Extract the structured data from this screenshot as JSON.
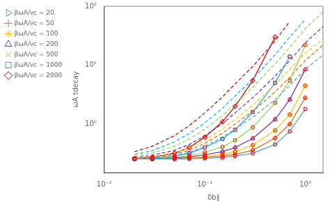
{
  "chart_data": {
    "type": "line",
    "log": true,
    "grid": false,
    "legend": "upper left",
    "x_label": "δb∥",
    "y_label": "ωA tdecay",
    "xlim": [
      0.01,
      1.5
    ],
    "ylim": [
      0.15,
      100
    ],
    "xticks": [
      {
        "value": 0.01,
        "label": "10⁻²"
      },
      {
        "value": 0.1,
        "label": "10⁻¹"
      },
      {
        "value": 1,
        "label": "10⁰"
      }
    ],
    "yticks": [
      {
        "value": 1,
        "label": "10⁰"
      },
      {
        "value": 10,
        "label": "10¹"
      },
      {
        "value": 100,
        "label": "10²"
      }
    ],
    "series": [
      {
        "name": "βωA/νc = 20",
        "color": "#5B9BD5",
        "type": "line",
        "marker": "triangle-right-open",
        "line_style": "solid",
        "x": [
          0.02,
          0.03,
          0.05,
          0.07,
          0.1,
          0.15,
          0.2,
          0.3,
          0.5,
          0.7,
          1.0
        ],
        "values": [
          0.255,
          0.255,
          0.255,
          0.258,
          0.262,
          0.27,
          0.285,
          0.32,
          0.45,
          0.75,
          1.8
        ]
      },
      {
        "color": "#5B9BD5",
        "type": "line",
        "line_style": "dashed",
        "x": [
          0.02,
          0.03,
          0.05,
          0.07,
          0.1,
          0.15,
          0.2,
          0.3,
          0.5,
          0.7,
          1.0,
          1.5
        ],
        "values": [
          0.255,
          0.265,
          0.29,
          0.33,
          0.42,
          0.6,
          0.82,
          1.3,
          2.6,
          4.5,
          8.5,
          15.0
        ]
      },
      {
        "name": "βωA/νc = 50",
        "color": "#E36C09",
        "type": "line",
        "marker": "plus",
        "line_style": "solid",
        "x": [
          0.02,
          0.03,
          0.05,
          0.07,
          0.1,
          0.15,
          0.2,
          0.3,
          0.5,
          0.7,
          1.0
        ],
        "values": [
          0.255,
          0.255,
          0.258,
          0.262,
          0.27,
          0.285,
          0.305,
          0.36,
          0.58,
          1.0,
          2.8
        ]
      },
      {
        "color": "#E36C09",
        "type": "line",
        "line_style": "dashed",
        "x": [
          0.02,
          0.03,
          0.05,
          0.07,
          0.1,
          0.15,
          0.2,
          0.3,
          0.5,
          0.7,
          1.0,
          1.5
        ],
        "values": [
          0.258,
          0.27,
          0.305,
          0.36,
          0.47,
          0.7,
          1.0,
          1.65,
          3.5,
          6.2,
          12.0,
          22.0
        ]
      },
      {
        "name": "βωA/νc = 100",
        "color": "#FFC000",
        "type": "line",
        "marker": "star",
        "line_style": "solid",
        "x": [
          0.02,
          0.03,
          0.05,
          0.07,
          0.1,
          0.15,
          0.2,
          0.3,
          0.5,
          0.7,
          1.0
        ],
        "values": [
          0.255,
          0.256,
          0.26,
          0.268,
          0.28,
          0.305,
          0.34,
          0.44,
          0.78,
          1.45,
          4.5
        ]
      },
      {
        "color": "#FFC000",
        "type": "line",
        "line_style": "dashed",
        "x": [
          0.02,
          0.03,
          0.05,
          0.07,
          0.1,
          0.15,
          0.2,
          0.3,
          0.5,
          0.7,
          1.0,
          1.5
        ],
        "values": [
          0.262,
          0.278,
          0.325,
          0.395,
          0.53,
          0.83,
          1.2,
          2.1,
          4.6,
          8.5,
          16.0,
          28.0
        ]
      },
      {
        "name": "βωA/νc = 200",
        "color": "#7030A0",
        "type": "line",
        "marker": "triangle-open",
        "line_style": "solid",
        "x": [
          0.02,
          0.03,
          0.05,
          0.07,
          0.1,
          0.15,
          0.2,
          0.3,
          0.5,
          0.7,
          1.0
        ],
        "values": [
          0.255,
          0.258,
          0.265,
          0.278,
          0.3,
          0.34,
          0.4,
          0.57,
          1.2,
          2.6,
          8.5
        ]
      },
      {
        "color": "#7030A0",
        "type": "line",
        "line_style": "dashed",
        "x": [
          0.02,
          0.03,
          0.05,
          0.07,
          0.1,
          0.15,
          0.2,
          0.3,
          0.5,
          0.7,
          1.0,
          1.5
        ],
        "values": [
          0.27,
          0.295,
          0.36,
          0.45,
          0.63,
          1.02,
          1.55,
          2.8,
          6.5,
          12.0,
          24.0,
          45.0
        ]
      },
      {
        "name": "βωA/νc = 500",
        "color": "#92D050",
        "type": "line",
        "marker": "x",
        "line_style": "solid",
        "x": [
          0.02,
          0.03,
          0.05,
          0.07,
          0.1,
          0.15,
          0.2,
          0.3,
          0.5,
          0.7,
          1.0
        ],
        "values": [
          0.256,
          0.26,
          0.272,
          0.292,
          0.33,
          0.41,
          0.53,
          0.88,
          2.3,
          5.5,
          22.0
        ]
      },
      {
        "color": "#92D050",
        "type": "line",
        "line_style": "dashed",
        "x": [
          0.02,
          0.03,
          0.05,
          0.07,
          0.1,
          0.15,
          0.2,
          0.3,
          0.5,
          0.7,
          1.0,
          1.5
        ],
        "values": [
          0.285,
          0.32,
          0.42,
          0.56,
          0.82,
          1.4,
          2.2,
          4.2,
          10.5,
          20.0,
          42.0,
          80.0
        ]
      },
      {
        "name": "βωA/νc = 1000",
        "color": "#00B0F0",
        "type": "line",
        "marker": "square-open",
        "line_style": "solid",
        "x": [
          0.02,
          0.03,
          0.05,
          0.07,
          0.1,
          0.15,
          0.2,
          0.3,
          0.5,
          0.7
        ],
        "values": [
          0.258,
          0.265,
          0.285,
          0.32,
          0.4,
          0.56,
          0.8,
          1.6,
          5.0,
          14.0
        ]
      },
      {
        "color": "#00B0F0",
        "type": "line",
        "line_style": "dashed",
        "x": [
          0.02,
          0.03,
          0.05,
          0.07,
          0.1,
          0.15,
          0.2,
          0.3,
          0.5,
          0.7,
          1.0
        ],
        "values": [
          0.305,
          0.355,
          0.5,
          0.69,
          1.05,
          1.85,
          3.0,
          5.8,
          15.0,
          30.0,
          60.0
        ]
      },
      {
        "name": "βωA/νc = 2000",
        "color": "#C00000",
        "type": "line",
        "marker": "diamond-open",
        "line_style": "solid",
        "x": [
          0.02,
          0.03,
          0.05,
          0.07,
          0.1,
          0.15,
          0.2,
          0.3,
          0.5
        ],
        "values": [
          0.262,
          0.275,
          0.32,
          0.4,
          0.6,
          1.1,
          2.0,
          5.5,
          30.0
        ]
      },
      {
        "color": "#C00000",
        "type": "line",
        "line_style": "dashed",
        "x": [
          0.02,
          0.03,
          0.05,
          0.07,
          0.1,
          0.15,
          0.2,
          0.3,
          0.5,
          0.7
        ],
        "values": [
          0.34,
          0.42,
          0.64,
          0.94,
          1.55,
          2.9,
          4.8,
          9.5,
          26.0,
          55.0
        ]
      },
      {
        "color": "red",
        "type": "scatter",
        "marker": "circle-open",
        "x": [
          0.02,
          0.03,
          0.05,
          0.07,
          0.1,
          0.15,
          0.2,
          0.3,
          0.5,
          0.7,
          1.0
        ],
        "values": [
          0.255,
          0.255,
          0.255,
          0.258,
          0.262,
          0.27,
          0.285,
          0.32,
          0.45,
          0.75,
          1.8
        ]
      },
      {
        "color": "red",
        "type": "scatter",
        "marker": "circle-open",
        "x": [
          0.02,
          0.03,
          0.05,
          0.07,
          0.1,
          0.15,
          0.2,
          0.3,
          0.5,
          0.7,
          1.0
        ],
        "values": [
          0.255,
          0.255,
          0.258,
          0.262,
          0.27,
          0.285,
          0.305,
          0.36,
          0.58,
          1.0,
          2.8
        ]
      },
      {
        "color": "red",
        "type": "scatter",
        "marker": "circle-open",
        "x": [
          0.02,
          0.03,
          0.05,
          0.07,
          0.1,
          0.15,
          0.2,
          0.3,
          0.5,
          0.7,
          1.0
        ],
        "values": [
          0.255,
          0.256,
          0.26,
          0.268,
          0.28,
          0.305,
          0.34,
          0.44,
          0.78,
          1.45,
          4.5
        ]
      },
      {
        "color": "red",
        "type": "scatter",
        "marker": "circle-open",
        "x": [
          0.02,
          0.03,
          0.05,
          0.07,
          0.1,
          0.15,
          0.2,
          0.3,
          0.5,
          0.7,
          1.0
        ],
        "values": [
          0.255,
          0.258,
          0.265,
          0.278,
          0.3,
          0.34,
          0.4,
          0.57,
          1.2,
          2.6,
          8.5
        ]
      },
      {
        "color": "red",
        "type": "scatter",
        "marker": "circle-open",
        "x": [
          0.02,
          0.03,
          0.05,
          0.07,
          0.1,
          0.15,
          0.2,
          0.3,
          0.5,
          0.7,
          1.0
        ],
        "values": [
          0.256,
          0.26,
          0.272,
          0.292,
          0.33,
          0.41,
          0.53,
          0.88,
          2.3,
          5.5,
          22.0
        ]
      },
      {
        "color": "red",
        "type": "scatter",
        "marker": "circle-open",
        "x": [
          0.02,
          0.03,
          0.05,
          0.07,
          0.1,
          0.15,
          0.2,
          0.3,
          0.5,
          0.7
        ],
        "values": [
          0.258,
          0.265,
          0.285,
          0.32,
          0.4,
          0.56,
          0.8,
          1.6,
          5.0,
          14.0
        ]
      },
      {
        "color": "red",
        "type": "scatter",
        "marker": "circle-open",
        "x": [
          0.02,
          0.03,
          0.05,
          0.07,
          0.1,
          0.15,
          0.2,
          0.3,
          0.5
        ],
        "values": [
          0.262,
          0.275,
          0.32,
          0.4,
          0.6,
          1.1,
          2.0,
          5.5,
          30.0
        ]
      }
    ]
  }
}
